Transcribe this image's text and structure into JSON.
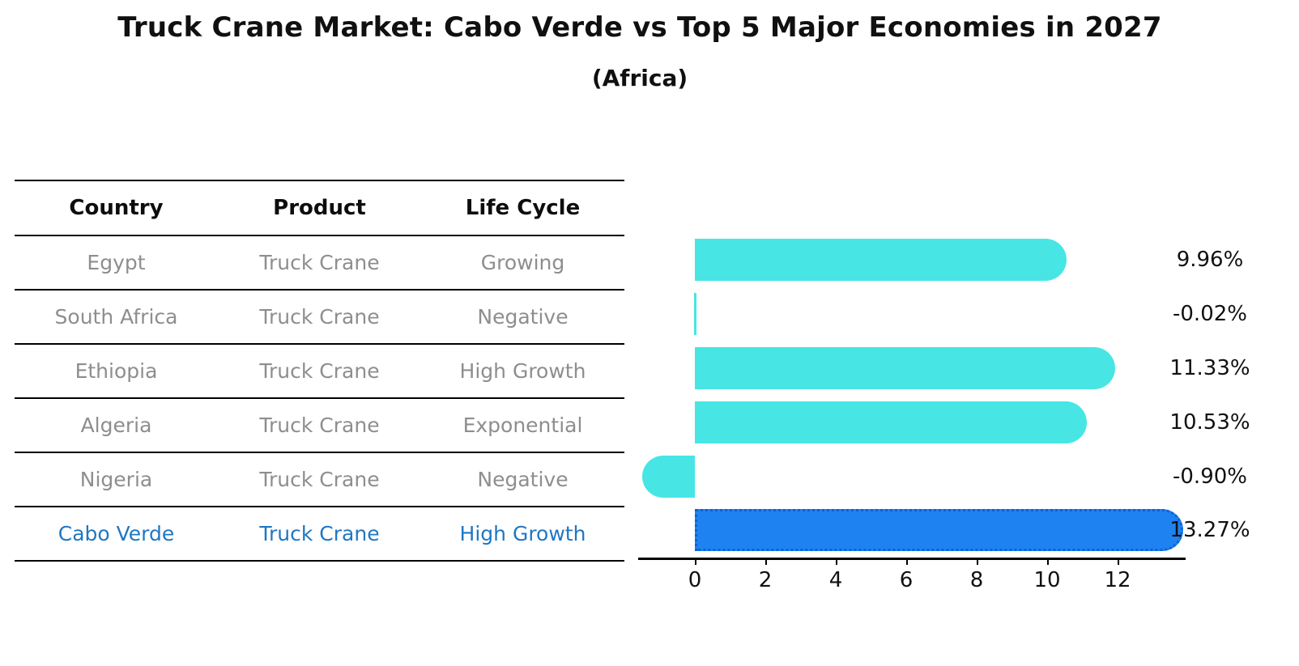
{
  "title": "Truck Crane Market: Cabo Verde vs Top 5 Major Economies in 2027",
  "subtitle": "(Africa)",
  "table": {
    "headers": [
      "Country",
      "Product",
      "Life Cycle"
    ],
    "rows": [
      {
        "country": "Egypt",
        "product": "Truck Crane",
        "life_cycle": "Growing",
        "highlight": false
      },
      {
        "country": "South Africa",
        "product": "Truck Crane",
        "life_cycle": "Negative",
        "highlight": false
      },
      {
        "country": "Ethiopia",
        "product": "Truck Crane",
        "life_cycle": "High Growth",
        "highlight": false
      },
      {
        "country": "Algeria",
        "product": "Truck Crane",
        "life_cycle": "Exponential",
        "highlight": false
      },
      {
        "country": "Nigeria",
        "product": "Truck Crane",
        "life_cycle": "Negative",
        "highlight": false
      },
      {
        "country": "Cabo Verde",
        "product": "Truck Crane",
        "life_cycle": "High Growth",
        "highlight": true
      }
    ]
  },
  "chart_data": {
    "type": "bar",
    "orientation": "horizontal",
    "title": "Truck Crane Market: Cabo Verde vs Top 5 Major Economies in 2027 (Africa)",
    "categories": [
      "Egypt",
      "South Africa",
      "Ethiopia",
      "Algeria",
      "Nigeria",
      "Cabo Verde"
    ],
    "values": [
      9.96,
      -0.02,
      11.33,
      10.53,
      -0.9,
      13.27
    ],
    "value_labels": [
      "9.96%",
      "-0.02%",
      "11.33%",
      "10.53%",
      "-0.90%",
      "13.27%"
    ],
    "x_ticks": [
      0,
      2,
      4,
      6,
      8,
      10,
      12
    ],
    "xlim": [
      -1.6,
      13.9
    ],
    "grid": false,
    "legend": "none",
    "bar_style": "rounded-end",
    "highlight_index": 5,
    "colors": {
      "bar": "#47E6E4",
      "highlight_bar": "#1E82F0",
      "highlight_border": "#0E62D8",
      "axis": "#000000",
      "value_text": "#111111",
      "table_text": "#8E8E8E",
      "highlight_text": "#1F77C4"
    }
  }
}
